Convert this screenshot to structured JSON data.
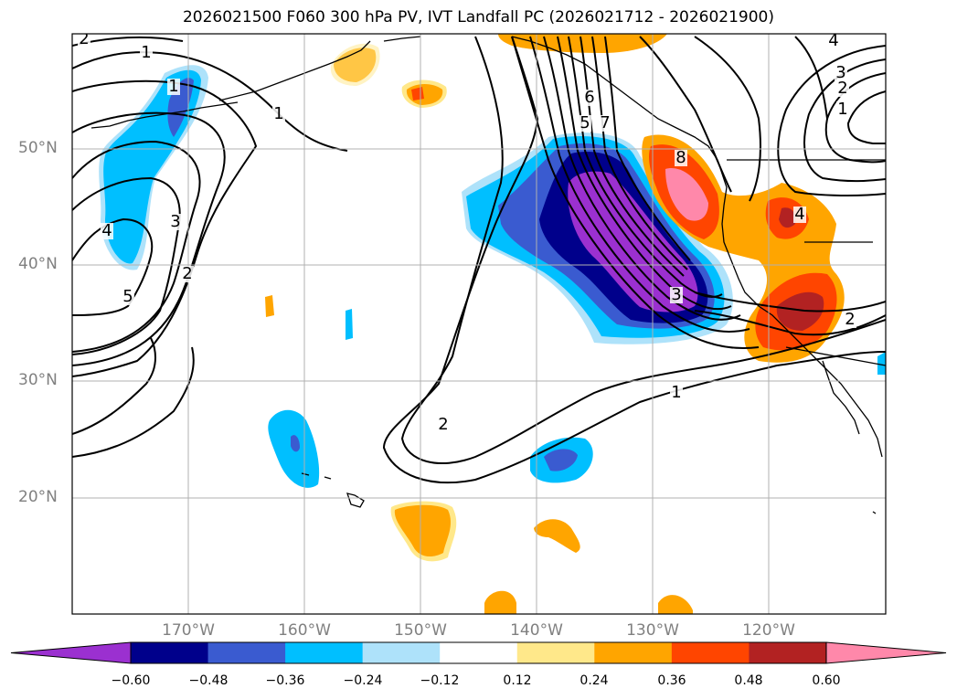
{
  "title": "2026021500 F060 300 hPa PV, IVT Landfall PC (2026021712 - 2026021900)",
  "map": {
    "projection": "PlateCarree",
    "lat_labels": [
      "50°N",
      "40°N",
      "30°N",
      "20°N"
    ],
    "lon_labels": [
      "170°W",
      "160°W",
      "150°W",
      "140°W",
      "130°W",
      "120°W"
    ],
    "contour_labels": [
      "2",
      "1",
      "1",
      "1",
      "3",
      "2",
      "4",
      "5",
      "6",
      "5",
      "7",
      "8",
      "3",
      "4",
      "3",
      "2",
      "1",
      "4",
      "2",
      "1",
      "2"
    ]
  },
  "colorbar": {
    "tick_labels": [
      "−0.60",
      "−0.48",
      "−0.36",
      "−0.24",
      "−0.12",
      "0.12",
      "0.24",
      "0.36",
      "0.48",
      "0.60"
    ],
    "colors": [
      "#9b30d0",
      "#00008b",
      "#3a5bd0",
      "#00bfff",
      "#aee2fa",
      "#ffffff",
      "#ffe88a",
      "#ffa500",
      "#ff4500",
      "#b22222",
      "#ff88aa"
    ],
    "extend": "both"
  }
}
